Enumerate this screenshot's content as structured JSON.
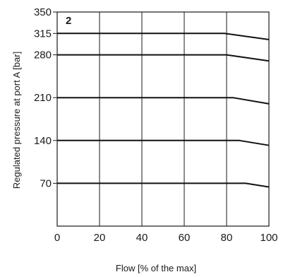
{
  "chart_data": {
    "type": "line",
    "panel_label": "2",
    "xlabel": "Flow [% of the max]",
    "ylabel": "Regulated pressure at port A [bar]",
    "xlim": [
      0,
      100
    ],
    "ylim": [
      0,
      350
    ],
    "x_ticks": [
      0,
      20,
      40,
      60,
      80,
      100
    ],
    "x_tick_labels": [
      "0",
      "20",
      "40",
      "60",
      "80",
      "100"
    ],
    "y_ticks": [
      70,
      140,
      210,
      280,
      315,
      350
    ],
    "y_tick_labels": [
      "70",
      "140",
      "210",
      "280",
      "315",
      "350"
    ],
    "grid": true,
    "series": [
      {
        "x": [
          0,
          79,
          100
        ],
        "y": [
          315,
          315,
          305
        ]
      },
      {
        "x": [
          0,
          80,
          100
        ],
        "y": [
          280,
          280,
          270
        ]
      },
      {
        "x": [
          0,
          83,
          100
        ],
        "y": [
          210,
          210,
          200
        ]
      },
      {
        "x": [
          0,
          86,
          100
        ],
        "y": [
          140,
          140,
          132
        ]
      },
      {
        "x": [
          0,
          89,
          100
        ],
        "y": [
          70,
          70,
          64
        ]
      }
    ]
  }
}
